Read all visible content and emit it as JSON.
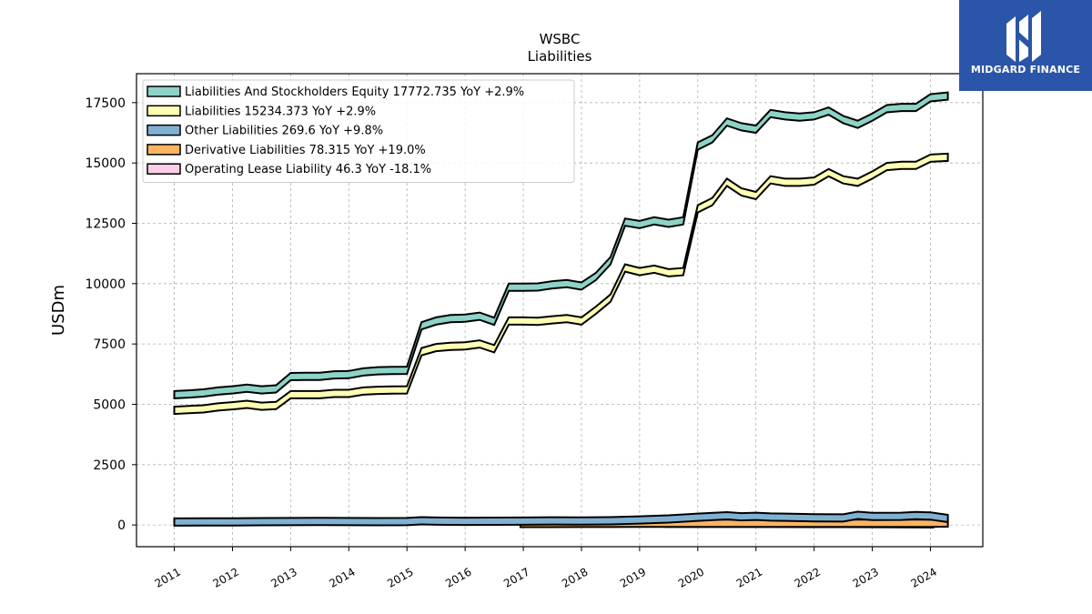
{
  "brand": {
    "name": "MIDGARD FINANCE",
    "bg_color": "#2b55a8"
  },
  "chart_data": {
    "type": "area",
    "title": "WSBC",
    "subtitle": "Liabilities",
    "xlabel": "",
    "ylabel": "USDm",
    "x_ticks": [
      "2011",
      "2012",
      "2013",
      "2014",
      "2015",
      "2016",
      "2017",
      "2018",
      "2019",
      "2020",
      "2021",
      "2022",
      "2023",
      "2024"
    ],
    "y_ticks": [
      0,
      2500,
      5000,
      7500,
      10000,
      12500,
      15000,
      17500
    ],
    "ylim": [
      -900,
      18700
    ],
    "xlim": [
      2010.35,
      2024.9
    ],
    "grid": true,
    "legend_position": "top-left",
    "series": [
      {
        "name": "Liabilities And Stockholders Equity",
        "legend": "Liabilities And Stockholders Equity  17772.735 YoY +2.9%",
        "color": "#8dd3c7",
        "x": [
          2011.0,
          2011.25,
          2011.5,
          2011.75,
          2012.0,
          2012.25,
          2012.5,
          2012.75,
          2013.0,
          2013.25,
          2013.5,
          2013.75,
          2014.0,
          2014.25,
          2014.5,
          2014.75,
          2015.0,
          2015.25,
          2015.5,
          2015.75,
          2016.0,
          2016.25,
          2016.5,
          2016.75,
          2017.0,
          2017.25,
          2017.5,
          2017.75,
          2018.0,
          2018.25,
          2018.5,
          2018.75,
          2019.0,
          2019.25,
          2019.5,
          2019.75,
          2020.0,
          2020.25,
          2020.5,
          2020.75,
          2021.0,
          2021.25,
          2021.5,
          2021.75,
          2022.0,
          2022.25,
          2022.5,
          2022.75,
          2023.0,
          2023.25,
          2023.5,
          2023.75,
          2024.0,
          2024.3
        ],
        "values": [
          5400,
          5430,
          5470,
          5550,
          5600,
          5670,
          5600,
          5640,
          6150,
          6160,
          6160,
          6220,
          6230,
          6340,
          6390,
          6400,
          6410,
          8250,
          8450,
          8550,
          8570,
          8650,
          8440,
          9850,
          9850,
          9860,
          9950,
          10000,
          9900,
          10300,
          10950,
          12550,
          12450,
          12600,
          12500,
          12600,
          15700,
          16000,
          16700,
          16500,
          16400,
          17050,
          16950,
          16900,
          16950,
          17150,
          16800,
          16600,
          16900,
          17250,
          17300,
          17300,
          17700,
          17772.735
        ]
      },
      {
        "name": "Liabilities",
        "legend": "Liabilities  15234.373 YoY +2.9%",
        "color": "#ffffb3",
        "x": [
          2011.0,
          2011.25,
          2011.5,
          2011.75,
          2012.0,
          2012.25,
          2012.5,
          2012.75,
          2013.0,
          2013.25,
          2013.5,
          2013.75,
          2014.0,
          2014.25,
          2014.5,
          2014.75,
          2015.0,
          2015.25,
          2015.5,
          2015.75,
          2016.0,
          2016.25,
          2016.5,
          2016.75,
          2017.0,
          2017.25,
          2017.5,
          2017.75,
          2018.0,
          2018.25,
          2018.5,
          2018.75,
          2019.0,
          2019.25,
          2019.5,
          2019.75,
          2020.0,
          2020.25,
          2020.5,
          2020.75,
          2021.0,
          2021.25,
          2021.5,
          2021.75,
          2022.0,
          2022.25,
          2022.5,
          2022.75,
          2023.0,
          2023.25,
          2023.5,
          2023.75,
          2024.0,
          2024.3
        ],
        "values": [
          4750,
          4780,
          4810,
          4890,
          4940,
          5000,
          4920,
          4950,
          5400,
          5400,
          5400,
          5450,
          5450,
          5550,
          5580,
          5590,
          5600,
          7180,
          7350,
          7400,
          7420,
          7500,
          7300,
          8450,
          8450,
          8440,
          8500,
          8550,
          8450,
          8900,
          9400,
          10650,
          10500,
          10600,
          10450,
          10500,
          13100,
          13400,
          14200,
          13800,
          13650,
          14300,
          14200,
          14200,
          14250,
          14600,
          14300,
          14200,
          14500,
          14850,
          14900,
          14900,
          15200,
          15234.373
        ]
      },
      {
        "name": "Other Liabilities",
        "legend": "Other Liabilities  269.6 YoY +9.8%",
        "color": "#80b1d3",
        "x": [
          2011.0,
          2011.5,
          2012.0,
          2012.5,
          2013.0,
          2013.5,
          2014.0,
          2014.5,
          2015.0,
          2015.25,
          2015.5,
          2016.0,
          2016.5,
          2017.0,
          2017.5,
          2018.0,
          2018.5,
          2019.0,
          2019.5,
          2020.0,
          2020.5,
          2020.75,
          2021.0,
          2021.25,
          2021.5,
          2022.0,
          2022.5,
          2022.75,
          2023.0,
          2023.5,
          2023.75,
          2024.0,
          2024.3
        ],
        "values": [
          120,
          125,
          130,
          135,
          140,
          145,
          140,
          135,
          140,
          175,
          160,
          150,
          155,
          160,
          170,
          165,
          175,
          210,
          250,
          320,
          380,
          340,
          360,
          330,
          320,
          300,
          290,
          400,
          350,
          360,
          390,
          370,
          269.6
        ]
      },
      {
        "name": "Derivative Liabilities",
        "legend": "Derivative Liabilities  78.315 YoY +19.0%",
        "color": "#fdb462",
        "x": [
          2016.95,
          2017.5,
          2018.0,
          2018.5,
          2019.0,
          2019.4,
          2019.5,
          2020.0,
          2020.5,
          2021.0,
          2021.5,
          2022.0,
          2022.5,
          2023.0,
          2023.5,
          2024.0,
          2024.3
        ],
        "values": [
          60,
          60,
          65,
          65,
          70,
          70,
          70,
          70,
          70,
          70,
          70,
          70,
          70,
          70,
          70,
          70,
          78.315
        ]
      },
      {
        "name": "Operating Lease Liability",
        "legend": "Operating Lease Liability  46.3 YoY -18.1%",
        "color": "#fccde5",
        "x": [
          2019.45,
          2020.0,
          2020.5,
          2021.0,
          2021.5,
          2022.0,
          2022.5,
          2023.0,
          2023.5,
          2024.05
        ],
        "values": [
          70,
          72,
          70,
          68,
          65,
          62,
          60,
          58,
          55,
          46.3
        ]
      }
    ]
  }
}
